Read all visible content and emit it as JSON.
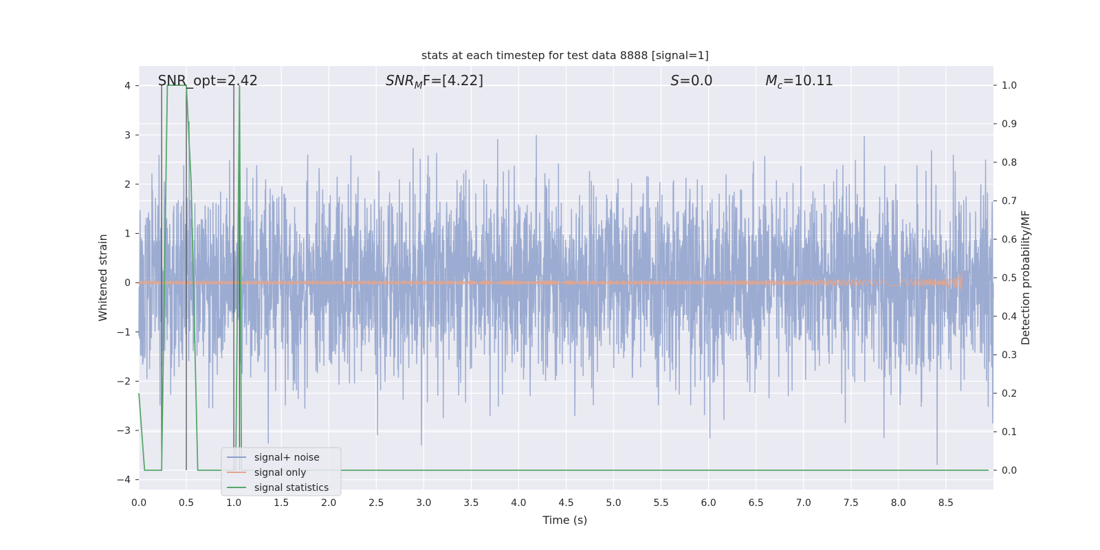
{
  "chart_data": {
    "type": "line",
    "title": "stats at each timestep for test data 8888 [signal=1]",
    "xlabel": "Time (s)",
    "ylabel": "Whitened strain",
    "y2label": "Detection probability/MF",
    "xlim": [
      0.0,
      9.0
    ],
    "ylim": [
      -4.2,
      4.4
    ],
    "y2lim": [
      -0.05,
      1.05
    ],
    "xticks": [
      "0.0",
      "0.5",
      "1.0",
      "1.5",
      "2.0",
      "2.5",
      "3.0",
      "3.5",
      "4.0",
      "4.5",
      "5.0",
      "5.5",
      "6.0",
      "6.5",
      "7.0",
      "7.5",
      "8.0",
      "8.5"
    ],
    "yticks": [
      "4",
      "3",
      "2",
      "1",
      "0",
      "−1",
      "−2",
      "−3",
      "−4"
    ],
    "y2ticks": [
      "1.0",
      "0.9",
      "0.8",
      "0.7",
      "0.6",
      "0.5",
      "0.4",
      "0.3",
      "0.2",
      "0.1",
      "0.0"
    ],
    "grid": true,
    "legend_position": "lower-left",
    "annotations": [
      {
        "key": "snr-opt",
        "text": "SNR_opt=2.42",
        "x": 0.2
      },
      {
        "key": "snr-mf",
        "text": "SNR",
        "sub": "M",
        "tail": "F=[4.22]",
        "italic_prefix": true,
        "x": 2.6
      },
      {
        "key": "s-stat",
        "text": "S",
        "tail": "=0.0",
        "italic_prefix": true,
        "x": 5.6
      },
      {
        "key": "chirp-mass",
        "text": "M",
        "sub": "c",
        "tail": "=10.11",
        "italic_prefix": true,
        "x": 6.6
      }
    ],
    "series": [
      {
        "name": "signal+ noise",
        "color": "#8da0cb",
        "kind": "noise",
        "amplitude_sigma": 0.95,
        "peak_max": 4.0,
        "peak_min": -3.7
      },
      {
        "name": "signal only",
        "color": "#e5a48b",
        "kind": "chirp",
        "end_x": 8.67,
        "end_amp": 0.35
      },
      {
        "name": "signal statistics",
        "color": "#55a868",
        "kind": "steps",
        "x": [
          0.0,
          0.06,
          0.24,
          0.3,
          0.5,
          0.55,
          0.62,
          1.0,
          1.02,
          1.06,
          1.08,
          1.1,
          8.95
        ],
        "y": [
          0.2,
          0.0,
          0.0,
          1.0,
          1.0,
          0.75,
          0.0,
          0.0,
          0.0,
          1.0,
          0.0,
          0.0,
          0.0
        ]
      }
    ],
    "vertical_lines": [
      0.24,
      0.5,
      1.0,
      1.06
    ]
  }
}
